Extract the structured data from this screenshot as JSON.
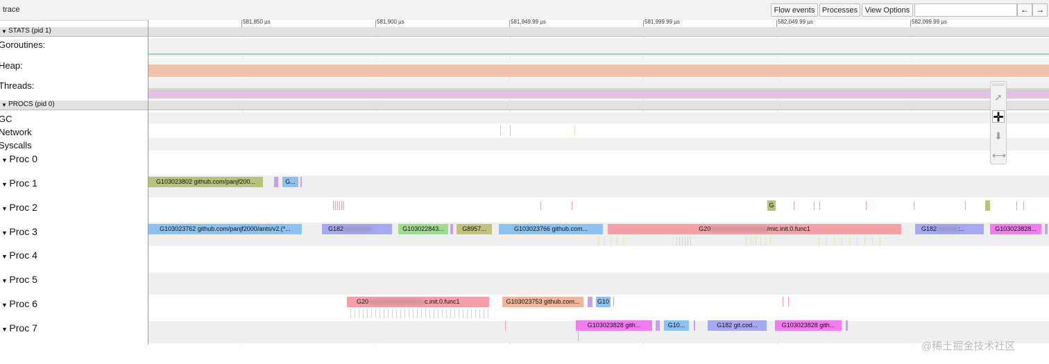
{
  "app": {
    "title": "trace"
  },
  "toolbar": {
    "flow_events": "Flow events",
    "processes": "Processes",
    "view_options": "View Options",
    "search_value": "",
    "prev": "←",
    "next": "→"
  },
  "ruler": {
    "labels": [
      "581,850 µs",
      "581,900 µs",
      "581,949.99 µs",
      "581,999.99 µs",
      "582,049.99 µs",
      "582,099.99 µs"
    ]
  },
  "stats": {
    "header": "STATS (pid 1)",
    "rows": [
      "Goroutines:",
      "Heap:",
      "Threads:"
    ]
  },
  "procs": {
    "header": "PROCS (pid 0)",
    "rows": [
      "GC",
      "Network",
      "Syscalls"
    ],
    "procs": [
      "Proc 0",
      "Proc 1",
      "Proc 2",
      "Proc 3",
      "Proc 4",
      "Proc 5",
      "Proc 6",
      "Proc 7"
    ]
  },
  "slices": {
    "p1": [
      "G103023802 github.com/panjf200...",
      "G..."
    ],
    "p2": [
      "G"
    ],
    "p3": [
      "G103023762 github.com/panjf2000/ants/v2.(*...",
      "G182",
      "G103022843...",
      "G8957...",
      "G103023766 github.com...",
      "G20",
      "/mic.init.0.func1",
      "G182",
      ":..",
      "G103023828..."
    ],
    "p6": [
      "G20",
      "c.init.0.func1",
      "G103023753 github.com...",
      "G10"
    ],
    "p7": [
      "G103023828 gith...",
      "G10...",
      "G182 git.cod...",
      "G103023828 gith..."
    ]
  },
  "colors": {
    "olive": "#b8c27a",
    "blue": "#8cc2f2",
    "lavender": "#a7a8f2",
    "green": "#9dde8e",
    "khaki": "#c2c27e",
    "pink": "#f5a0a8",
    "salmon": "#f0b59a",
    "magenta": "#f37bf0",
    "purple": "#c7a0f0"
  },
  "watermark": "@稀土掘金技术社区"
}
